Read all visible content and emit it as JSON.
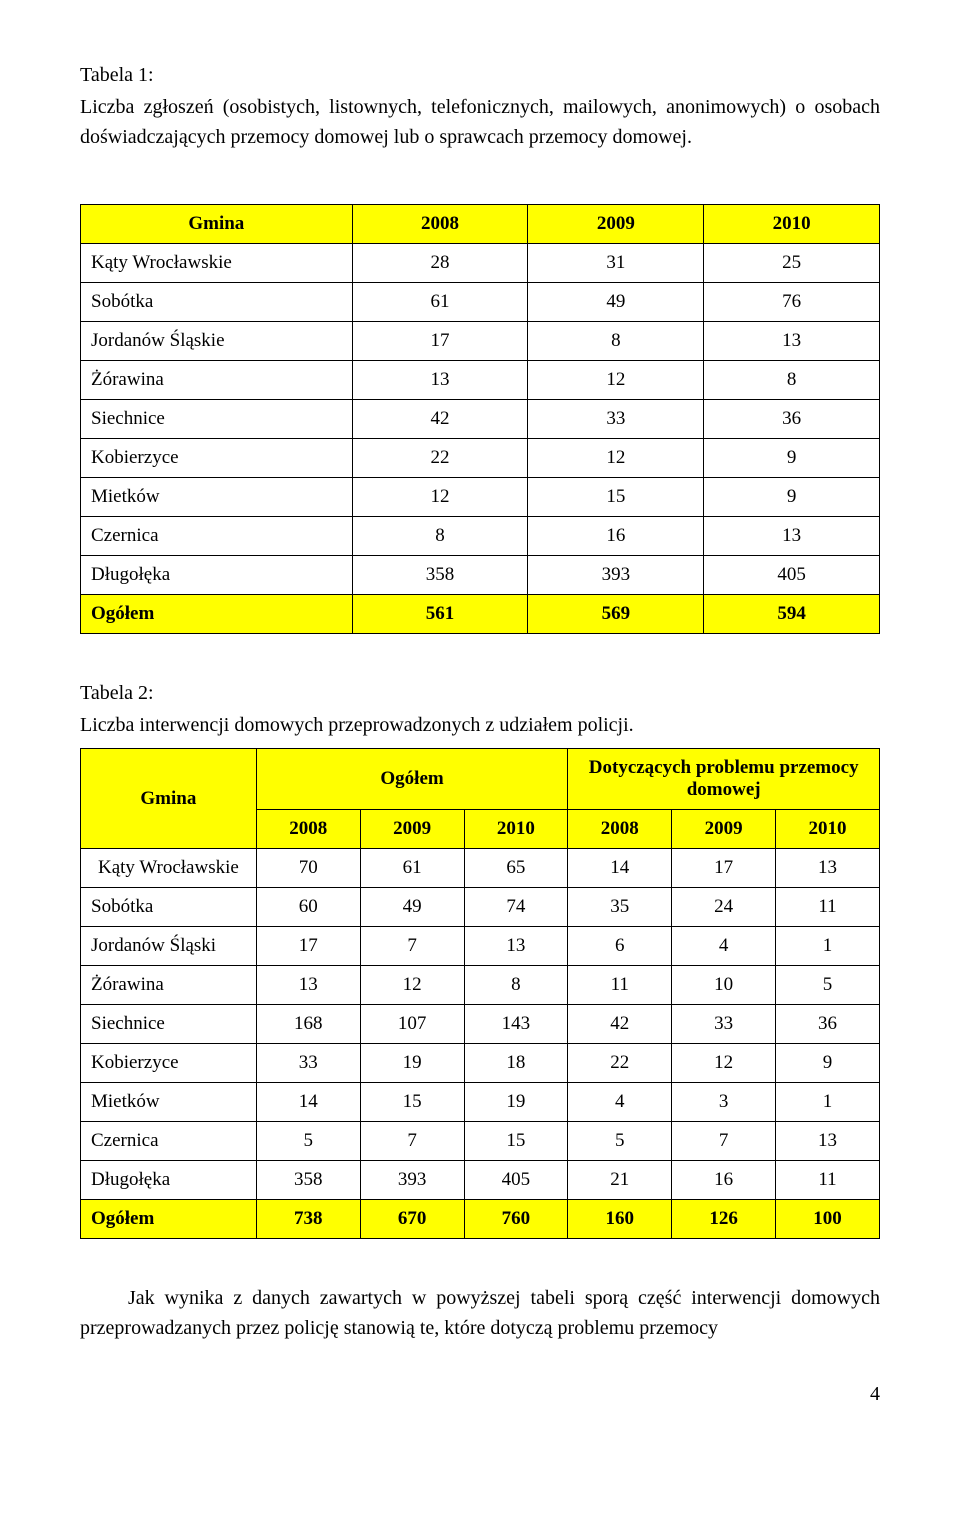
{
  "intro": {
    "label": "Tabela 1:",
    "para": "Liczba zgłoszeń (osobistych, listownych, telefonicznych, mailowych, anonimowych) o osobach doświadczających przemocy domowej lub o sprawcach przemocy domowej."
  },
  "table1": {
    "headers": {
      "c0": "Gmina",
      "c1": "2008",
      "c2": "2009",
      "c3": "2010"
    },
    "rows": [
      {
        "c0": "Kąty Wrocławskie",
        "c1": "28",
        "c2": "31",
        "c3": "25"
      },
      {
        "c0": "Sobótka",
        "c1": "61",
        "c2": "49",
        "c3": "76"
      },
      {
        "c0": "Jordanów Śląskie",
        "c1": "17",
        "c2": "8",
        "c3": "13"
      },
      {
        "c0": "Żórawina",
        "c1": "13",
        "c2": "12",
        "c3": "8"
      },
      {
        "c0": "Siechnice",
        "c1": "42",
        "c2": "33",
        "c3": "36"
      },
      {
        "c0": "Kobierzyce",
        "c1": "22",
        "c2": "12",
        "c3": "9"
      },
      {
        "c0": "Mietków",
        "c1": "12",
        "c2": "15",
        "c3": "9"
      },
      {
        "c0": "Czernica",
        "c1": "8",
        "c2": "16",
        "c3": "13"
      },
      {
        "c0": "Długołęka",
        "c1": "358",
        "c2": "393",
        "c3": "405"
      }
    ],
    "footer": {
      "c0": "Ogółem",
      "c1": "561",
      "c2": "569",
      "c3": "594"
    },
    "col_widths": [
      "34%",
      "22%",
      "22%",
      "22%"
    ]
  },
  "mid": {
    "label": "Tabela 2:",
    "para": "Liczba interwencji domowych przeprowadzonych z udziałem policji."
  },
  "table2": {
    "headers_top": {
      "c0": "Gmina",
      "c1": "Ogółem",
      "c2": "Dotyczących problemu przemocy domowej"
    },
    "headers_sub": {
      "c1": "2008",
      "c2": "2009",
      "c3": "2010",
      "c4": "2008",
      "c5": "2009",
      "c6": "2010"
    },
    "rows": [
      {
        "c0": "Kąty Wrocławskie",
        "c1": "70",
        "c2": "61",
        "c3": "65",
        "c4": "14",
        "c5": "17",
        "c6": "13"
      },
      {
        "c0": "Sobótka",
        "c1": "60",
        "c2": "49",
        "c3": "74",
        "c4": "35",
        "c5": "24",
        "c6": "11"
      },
      {
        "c0": "Jordanów Śląski",
        "c1": "17",
        "c2": "7",
        "c3": "13",
        "c4": "6",
        "c5": "4",
        "c6": "1"
      },
      {
        "c0": "Żórawina",
        "c1": "13",
        "c2": "12",
        "c3": "8",
        "c4": "11",
        "c5": "10",
        "c6": "5"
      },
      {
        "c0": "Siechnice",
        "c1": "168",
        "c2": "107",
        "c3": "143",
        "c4": "42",
        "c5": "33",
        "c6": "36"
      },
      {
        "c0": "Kobierzyce",
        "c1": "33",
        "c2": "19",
        "c3": "18",
        "c4": "22",
        "c5": "12",
        "c6": "9"
      },
      {
        "c0": "Mietków",
        "c1": "14",
        "c2": "15",
        "c3": "19",
        "c4": "4",
        "c5": "3",
        "c6": "1"
      },
      {
        "c0": "Czernica",
        "c1": "5",
        "c2": "7",
        "c3": "15",
        "c4": "5",
        "c5": "7",
        "c6": "13"
      },
      {
        "c0": "Długołęka",
        "c1": "358",
        "c2": "393",
        "c3": "405",
        "c4": "21",
        "c5": "16",
        "c6": "11"
      }
    ],
    "footer": {
      "c0": "Ogółem",
      "c1": "738",
      "c2": "670",
      "c3": "760",
      "c4": "160",
      "c5": "126",
      "c6": "100"
    },
    "col_widths": [
      "22%",
      "13%",
      "13%",
      "13%",
      "13%",
      "13%",
      "13%"
    ]
  },
  "outro": {
    "para": "Jak wynika z danych zawartych w powyższej tabeli sporą część interwencji domowych przeprowadzanych przez policję stanowią te, które dotyczą problemu przemocy"
  },
  "page_number": "4",
  "colors": {
    "highlight": "#ffff00",
    "border": "#000000",
    "text": "#000000",
    "bg": "#ffffff"
  }
}
